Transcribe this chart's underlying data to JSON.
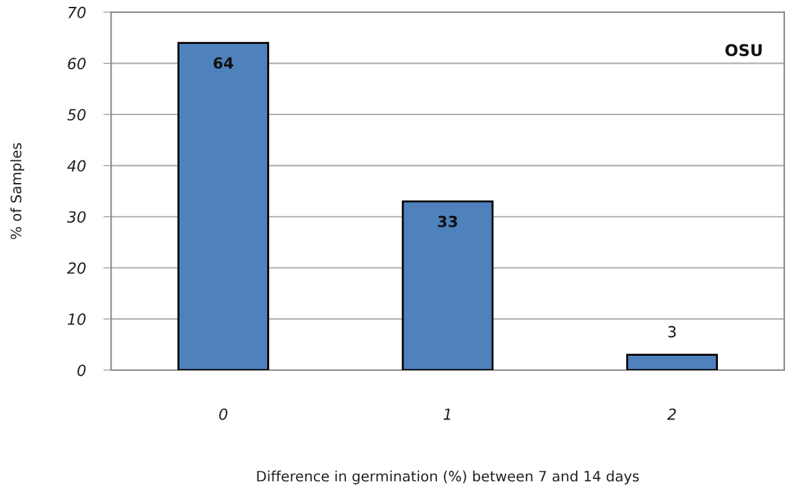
{
  "chart_data": {
    "type": "bar",
    "xlabel": "Difference in germination (%) between 7 and 14 days",
    "ylabel": "% of Samples",
    "categories": [
      "0",
      "1",
      "2"
    ],
    "values": [
      64,
      33,
      3
    ],
    "color": "#4f81bd",
    "ylim": [
      0,
      70
    ],
    "yticks": [
      0,
      10,
      20,
      30,
      40,
      50,
      60,
      70
    ],
    "grid": "y",
    "data_labels": true,
    "annotations": [
      "OSU"
    ]
  }
}
